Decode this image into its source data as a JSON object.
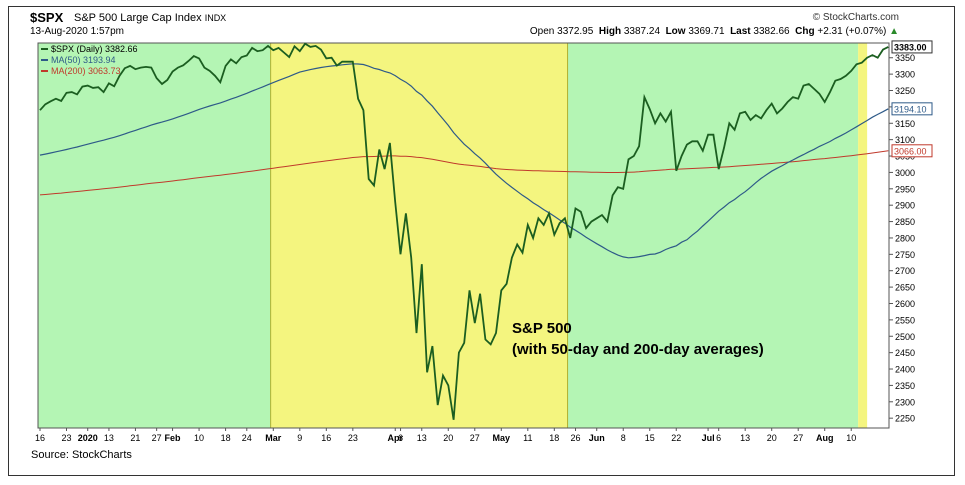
{
  "header": {
    "ticker": "$SPX",
    "name": "S&P 500 Large Cap Index",
    "exchange": "INDX",
    "datetime": "13-Aug-2020 1:57pm",
    "brand": "© StockCharts.com",
    "open_label": "Open",
    "open": "3372.95",
    "high_label": "High",
    "high": "3387.24",
    "low_label": "Low",
    "low": "3369.71",
    "last_label": "Last",
    "last": "3382.66",
    "chg_label": "Chg",
    "chg": "+2.31 (+0.07%)"
  },
  "source": "Source: StockCharts",
  "chart_data": {
    "type": "line",
    "xlabel": "",
    "ylabel": "",
    "ylim": [
      2220,
      3395
    ],
    "yticks": [
      2250,
      2300,
      2350,
      2400,
      2450,
      2500,
      2550,
      2600,
      2650,
      2700,
      2750,
      2800,
      2850,
      2900,
      2950,
      3000,
      3050,
      3100,
      3150,
      3200,
      3250,
      3300,
      3350
    ],
    "xticks": [
      {
        "label": "16",
        "i": 0
      },
      {
        "label": "23",
        "i": 5
      },
      {
        "label": "2020",
        "i": 9
      },
      {
        "label": "13",
        "i": 13
      },
      {
        "label": "21",
        "i": 18
      },
      {
        "label": "27",
        "i": 22
      },
      {
        "label": "Feb",
        "i": 25
      },
      {
        "label": "10",
        "i": 30
      },
      {
        "label": "18",
        "i": 35
      },
      {
        "label": "24",
        "i": 39
      },
      {
        "label": "Mar",
        "i": 44
      },
      {
        "label": "9",
        "i": 49
      },
      {
        "label": "16",
        "i": 54
      },
      {
        "label": "23",
        "i": 59
      },
      {
        "label": "Apr",
        "i": 67
      },
      {
        "label": "6",
        "i": 68
      },
      {
        "label": "13",
        "i": 72
      },
      {
        "label": "20",
        "i": 77
      },
      {
        "label": "27",
        "i": 82
      },
      {
        "label": "May",
        "i": 87
      },
      {
        "label": "11",
        "i": 92
      },
      {
        "label": "18",
        "i": 97
      },
      {
        "label": "26",
        "i": 101
      },
      {
        "label": "Jun",
        "i": 105
      },
      {
        "label": "8",
        "i": 110
      },
      {
        "label": "15",
        "i": 115
      },
      {
        "label": "22",
        "i": 120
      },
      {
        "label": "Jul",
        "i": 126
      },
      {
        "label": "6",
        "i": 128
      },
      {
        "label": "13",
        "i": 133
      },
      {
        "label": "20",
        "i": 138
      },
      {
        "label": "27",
        "i": 143
      },
      {
        "label": "Aug",
        "i": 148
      },
      {
        "label": "10",
        "i": 153
      }
    ],
    "regions": [
      {
        "from": -1,
        "to": 43.5,
        "color": "#b4f5b4"
      },
      {
        "from": 43.5,
        "to": 99.5,
        "color": "#f4f57f"
      },
      {
        "from": 99.5,
        "to": 154.3,
        "color": "#b4f5b4"
      },
      {
        "from": 154.3,
        "to": 156,
        "color": "#f4f57f"
      }
    ],
    "annotation": [
      "S&P 500",
      "(with 50-day and 200-day averages)"
    ],
    "legend": [
      "$SPX (Daily) 3382.66",
      "MA(50) 3193.94",
      "MA(200) 3063.73"
    ],
    "series": [
      {
        "name": "$SPX (Daily) 3382.66",
        "color": "#1b5e20",
        "values": [
          3190,
          3208,
          3217,
          3225,
          3218,
          3243,
          3245,
          3238,
          3262,
          3265,
          3258,
          3260,
          3245,
          3272,
          3263,
          3295,
          3318,
          3325,
          3315,
          3320,
          3322,
          3320,
          3288,
          3270,
          3282,
          3308,
          3320,
          3327,
          3340,
          3355,
          3348,
          3320,
          3310,
          3295,
          3275,
          3325,
          3345,
          3333,
          3352,
          3357,
          3380,
          3370,
          3373,
          3386,
          3373,
          3380,
          3366,
          3352,
          3385,
          3370,
          3393,
          3383,
          3386,
          3375,
          3348,
          3350,
          3326,
          3338,
          3338,
          3338,
          3225,
          3190,
          2980,
          2960,
          3070,
          3010,
          3090,
          2910,
          2750,
          2875,
          2740,
          2510,
          2720,
          2390,
          2470,
          2290,
          2380,
          2350,
          2245,
          2450,
          2480,
          2640,
          2540,
          2630,
          2490,
          2475,
          2510,
          2640,
          2660,
          2740,
          2780,
          2755,
          2840,
          2800,
          2860,
          2840,
          2875,
          2810,
          2845,
          2860,
          2800,
          2890,
          2880,
          2830,
          2850,
          2860,
          2870,
          2850,
          2930,
          2955,
          2950,
          3040,
          3050,
          3080,
          3230,
          3193,
          3150,
          3180,
          3155,
          3185,
          3005,
          3050,
          3085,
          3095,
          3095,
          3066,
          3115,
          3115,
          3010,
          3075,
          3150,
          3130,
          3180,
          3185,
          3160,
          3175,
          3165,
          3190,
          3210,
          3180,
          3195,
          3215,
          3230,
          3225,
          3265,
          3270,
          3255,
          3240,
          3215,
          3245,
          3280,
          3285,
          3295,
          3310,
          3330,
          3335,
          3350,
          3358,
          3350,
          3375,
          3383
        ],
        "dates_note": ""
      }
    ]
  }
}
